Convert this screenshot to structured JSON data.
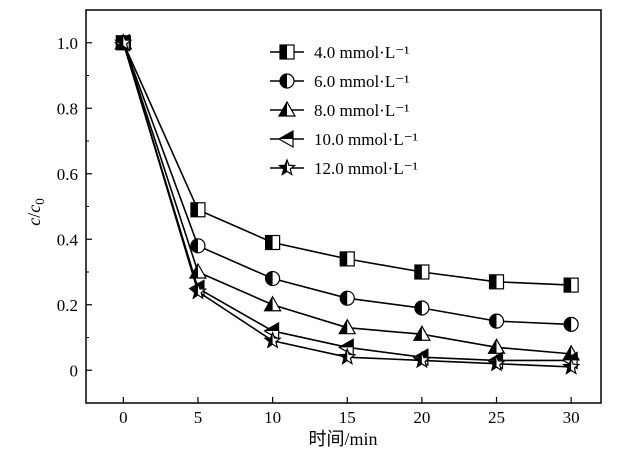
{
  "chart_data": {
    "type": "line",
    "title": "",
    "xlabel": "时间/min",
    "ylabel": "c/c0",
    "ylabel_parts": {
      "c1": "c",
      "slash": "/",
      "c2": "c",
      "sub": "0"
    },
    "xlim": [
      -2.5,
      32
    ],
    "ylim": [
      -0.1,
      1.1
    ],
    "x_ticks": [
      0,
      5,
      10,
      15,
      20,
      25,
      30
    ],
    "x_tick_labels": [
      "0",
      "5",
      "10",
      "15",
      "20",
      "25",
      "30"
    ],
    "y_ticks": [
      0,
      0.2,
      0.4,
      0.6,
      0.8,
      1.0
    ],
    "y_tick_labels": [
      "0",
      "0.2",
      "0.4",
      "0.6",
      "0.8",
      "1.0"
    ],
    "grid": false,
    "legend_position": "top-center",
    "x": [
      0,
      5,
      10,
      15,
      20,
      25,
      30
    ],
    "series": [
      {
        "name": "4.0 mmol·L⁻¹",
        "marker": "square-half",
        "values": [
          1.0,
          0.49,
          0.39,
          0.34,
          0.3,
          0.27,
          0.26
        ]
      },
      {
        "name": "6.0 mmol·L⁻¹",
        "marker": "circle-half",
        "values": [
          1.0,
          0.38,
          0.28,
          0.22,
          0.19,
          0.15,
          0.14
        ]
      },
      {
        "name": "8.0 mmol·L⁻¹",
        "marker": "triangle-up-half",
        "values": [
          1.0,
          0.3,
          0.2,
          0.13,
          0.11,
          0.07,
          0.05
        ]
      },
      {
        "name": "10.0 mmol·L⁻¹",
        "marker": "triangle-left-half",
        "values": [
          1.0,
          0.25,
          0.12,
          0.07,
          0.04,
          0.03,
          0.03
        ]
      },
      {
        "name": "12.0 mmol·L⁻¹",
        "marker": "star-half",
        "values": [
          1.0,
          0.24,
          0.09,
          0.04,
          0.03,
          0.02,
          0.01
        ]
      }
    ]
  }
}
